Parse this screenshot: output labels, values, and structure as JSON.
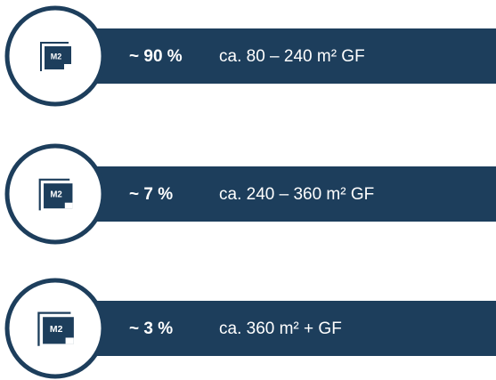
{
  "items": [
    {
      "icon_label": "M2",
      "share": "~ 90 %",
      "range": "ca. 80 – 240 m² GF"
    },
    {
      "icon_label": "M2",
      "share": "~  7 %",
      "range": "ca. 240 – 360 m² GF"
    },
    {
      "icon_label": "M2",
      "share": "~  3 %",
      "range": "ca. 360 m² + GF"
    }
  ]
}
